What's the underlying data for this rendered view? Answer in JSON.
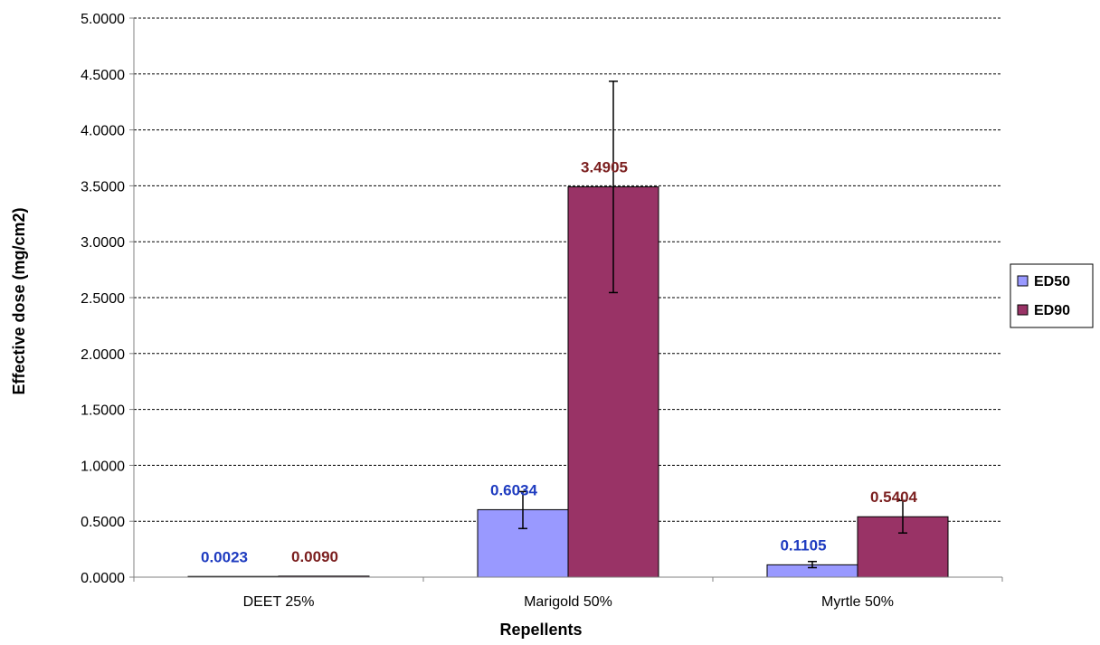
{
  "chart_data": {
    "type": "bar",
    "categories": [
      "DEET 25%",
      "Marigold 50%",
      "Myrtle 50%"
    ],
    "series": [
      {
        "name": "ED50",
        "values": [
          0.0023,
          0.6034,
          0.1105
        ],
        "labels": [
          "0.0023",
          "0.6034",
          "0.1105"
        ],
        "err_low": [
          null,
          0.435,
          0.085
        ],
        "err_high": [
          null,
          0.765,
          0.14
        ],
        "color": "#9999ff",
        "label_color": "#1f3cc0"
      },
      {
        "name": "ED90",
        "values": [
          0.009,
          3.4905,
          0.5404
        ],
        "labels": [
          "0.0090",
          "3.4905",
          "0.5404"
        ],
        "err_low": [
          null,
          2.545,
          0.395
        ],
        "err_high": [
          null,
          4.435,
          0.685
        ],
        "color": "#993366",
        "label_color": "#7b1f1f"
      }
    ],
    "ylim": [
      0,
      5
    ],
    "yticks": [
      "0.0000",
      "0.5000",
      "1.0000",
      "1.5000",
      "2.0000",
      "2.5000",
      "3.0000",
      "3.5000",
      "4.0000",
      "4.5000",
      "5.0000"
    ],
    "xlabel": "Repellents",
    "ylabel": "Effective dose (mg/cm2)",
    "grid": true,
    "legend_position": "right"
  }
}
